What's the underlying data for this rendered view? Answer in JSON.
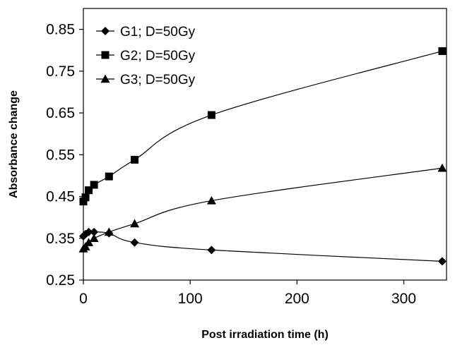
{
  "chart_data": {
    "type": "line",
    "title": "",
    "xlabel": "Post irradiation time (h)",
    "ylabel": "Absorbance change",
    "xlim": [
      0,
      340
    ],
    "ylim": [
      0.25,
      0.9
    ],
    "xticks": [
      0,
      100,
      200,
      300
    ],
    "xtick_labels": [
      "0",
      "100",
      "200",
      "300"
    ],
    "yticks": [
      0.25,
      0.35,
      0.45,
      0.55,
      0.65,
      0.75,
      0.85
    ],
    "ytick_labels": [
      "0.25",
      "0.35",
      "0.45",
      "0.55",
      "0.65",
      "0.75",
      "0.85"
    ],
    "grid": false,
    "legend_position": "top-left",
    "series": [
      {
        "name": "G1; D=50Gy",
        "marker": "diamond",
        "color": "#000000",
        "x": [
          0,
          2,
          5,
          10,
          24,
          48,
          120,
          336
        ],
        "y": [
          0.355,
          0.36,
          0.365,
          0.365,
          0.362,
          0.34,
          0.322,
          0.295
        ]
      },
      {
        "name": "G2; D=50Gy",
        "marker": "square",
        "color": "#000000",
        "x": [
          0,
          2,
          5,
          10,
          24,
          48,
          120,
          336
        ],
        "y": [
          0.438,
          0.448,
          0.465,
          0.478,
          0.498,
          0.538,
          0.645,
          0.798
        ]
      },
      {
        "name": "G3; D=50Gy",
        "marker": "triangle",
        "color": "#000000",
        "x": [
          0,
          2,
          5,
          10,
          24,
          48,
          120,
          336
        ],
        "y": [
          0.325,
          0.33,
          0.34,
          0.35,
          0.365,
          0.385,
          0.44,
          0.518
        ]
      }
    ]
  }
}
